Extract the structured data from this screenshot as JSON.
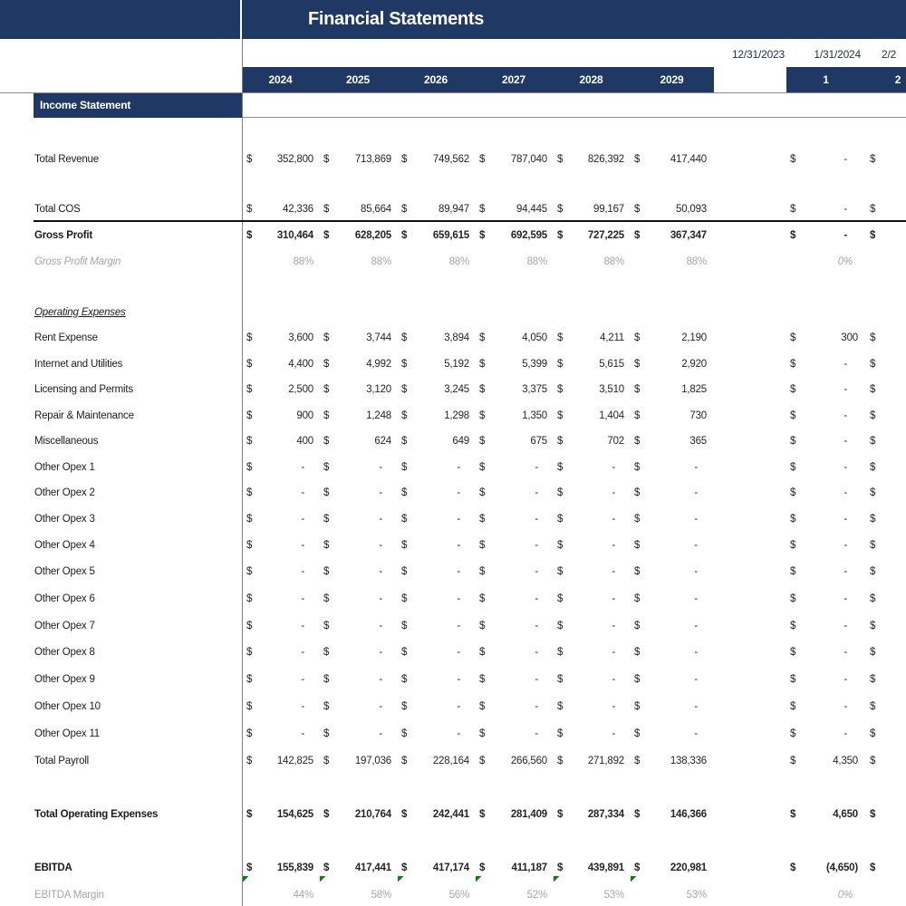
{
  "title": "Financial Statements",
  "section_header": "Income Statement",
  "dates": [
    "12/31/2023",
    "1/31/2024",
    "2/2"
  ],
  "year_columns": [
    "2024",
    "2025",
    "2026",
    "2027",
    "2028",
    "2029"
  ],
  "month_columns": [
    "1",
    "2"
  ],
  "colors": {
    "navy": "#1f3864",
    "gridline": "#7f7f7f",
    "gray_text": "#a6a6a6",
    "flag_green": "#008a00",
    "thick_border": "#101010"
  },
  "rows": [
    {
      "label": "Total Revenue",
      "label_style": "normal",
      "kind": "money",
      "values": [
        "352,800",
        "713,869",
        "749,562",
        "787,040",
        "826,392",
        "417,440"
      ],
      "month1": "-"
    },
    {
      "label": "Total COS",
      "label_style": "normal",
      "kind": "money",
      "values": [
        "42,336",
        "85,664",
        "89,947",
        "94,445",
        "99,167",
        "50,093"
      ],
      "month1": "-"
    },
    {
      "label": "Gross Profit",
      "label_style": "bold",
      "kind": "money",
      "values": [
        "310,464",
        "628,205",
        "659,615",
        "692,595",
        "727,225",
        "367,347"
      ],
      "month1": "-"
    },
    {
      "label": "Gross Profit Margin",
      "label_style": "gray_italic",
      "kind": "percent",
      "values": [
        "88%",
        "88%",
        "88%",
        "88%",
        "88%",
        "88%"
      ],
      "month1": "0%"
    },
    {
      "label": "Operating Expenses",
      "label_style": "italic_underline",
      "kind": "label_only",
      "values": [],
      "month1": ""
    },
    {
      "label": "Rent Expense",
      "label_style": "normal",
      "kind": "money",
      "values": [
        "3,600",
        "3,744",
        "3,894",
        "4,050",
        "4,211",
        "2,190"
      ],
      "month1": "300"
    },
    {
      "label": "Internet and Utilities",
      "label_style": "normal",
      "kind": "money",
      "values": [
        "4,400",
        "4,992",
        "5,192",
        "5,399",
        "5,615",
        "2,920"
      ],
      "month1": "-"
    },
    {
      "label": "Licensing and Permits",
      "label_style": "normal",
      "kind": "money",
      "values": [
        "2,500",
        "3,120",
        "3,245",
        "3,375",
        "3,510",
        "1,825"
      ],
      "month1": "-"
    },
    {
      "label": "Repair & Maintenance",
      "label_style": "normal",
      "kind": "money",
      "values": [
        "900",
        "1,248",
        "1,298",
        "1,350",
        "1,404",
        "730"
      ],
      "month1": "-"
    },
    {
      "label": "Miscellaneous",
      "label_style": "normal",
      "kind": "money",
      "values": [
        "400",
        "624",
        "649",
        "675",
        "702",
        "365"
      ],
      "month1": "-"
    },
    {
      "label": "Other Opex 1",
      "label_style": "normal",
      "kind": "money",
      "values": [
        "-",
        "-",
        "-",
        "-",
        "-",
        "-"
      ],
      "month1": "-"
    },
    {
      "label": "Other Opex 2",
      "label_style": "normal",
      "kind": "money",
      "values": [
        "-",
        "-",
        "-",
        "-",
        "-",
        "-"
      ],
      "month1": "-"
    },
    {
      "label": "Other Opex 3",
      "label_style": "normal",
      "kind": "money",
      "values": [
        "-",
        "-",
        "-",
        "-",
        "-",
        "-"
      ],
      "month1": "-"
    },
    {
      "label": "Other Opex 4",
      "label_style": "normal",
      "kind": "money",
      "values": [
        "-",
        "-",
        "-",
        "-",
        "-",
        "-"
      ],
      "month1": "-"
    },
    {
      "label": "Other Opex 5",
      "label_style": "normal",
      "kind": "money",
      "values": [
        "-",
        "-",
        "-",
        "-",
        "-",
        "-"
      ],
      "month1": "-"
    },
    {
      "label": "Other Opex 6",
      "label_style": "normal",
      "kind": "money",
      "values": [
        "-",
        "-",
        "-",
        "-",
        "-",
        "-"
      ],
      "month1": "-"
    },
    {
      "label": "Other Opex 7",
      "label_style": "normal",
      "kind": "money",
      "values": [
        "-",
        "-",
        "-",
        "-",
        "-",
        "-"
      ],
      "month1": "-"
    },
    {
      "label": "Other Opex 8",
      "label_style": "normal",
      "kind": "money",
      "values": [
        "-",
        "-",
        "-",
        "-",
        "-",
        "-"
      ],
      "month1": "-"
    },
    {
      "label": "Other Opex 9",
      "label_style": "normal",
      "kind": "money",
      "values": [
        "-",
        "-",
        "-",
        "-",
        "-",
        "-"
      ],
      "month1": "-"
    },
    {
      "label": "Other Opex 10",
      "label_style": "normal",
      "kind": "money",
      "values": [
        "-",
        "-",
        "-",
        "-",
        "-",
        "-"
      ],
      "month1": "-"
    },
    {
      "label": "Other Opex 11",
      "label_style": "normal",
      "kind": "money",
      "values": [
        "-",
        "-",
        "-",
        "-",
        "-",
        "-"
      ],
      "month1": "-"
    },
    {
      "label": "Total Payroll",
      "label_style": "normal",
      "kind": "money",
      "values": [
        "142,825",
        "197,036",
        "228,164",
        "266,560",
        "271,892",
        "138,336"
      ],
      "month1": "4,350"
    },
    {
      "label": "Total Operating Expenses",
      "label_style": "bold",
      "kind": "money",
      "values": [
        "154,625",
        "210,764",
        "242,441",
        "281,409",
        "287,334",
        "146,366"
      ],
      "month1": "4,650"
    },
    {
      "label": "EBITDA",
      "label_style": "bold",
      "kind": "money",
      "values": [
        "155,839",
        "417,441",
        "417,174",
        "411,187",
        "439,891",
        "220,981"
      ],
      "month1": "(4,650)"
    },
    {
      "label": "EBITDA Margin",
      "label_style": "gray",
      "kind": "percent",
      "flags": true,
      "values": [
        "44%",
        "58%",
        "56%",
        "52%",
        "53%",
        "53%"
      ],
      "month1": "0%"
    }
  ]
}
